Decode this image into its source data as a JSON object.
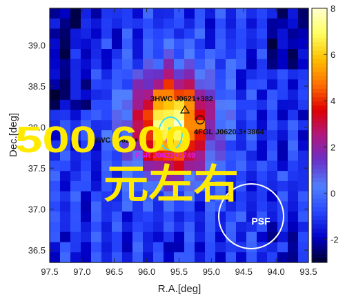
{
  "chart_data": {
    "type": "heatmap",
    "xlabel": "R.A.[deg]",
    "ylabel": "Dec.[deg]",
    "x_ticks": [
      "97.5",
      "97.0",
      "96.5",
      "96.0",
      "95.5",
      "95.0",
      "94.5",
      "94.0",
      "93.5"
    ],
    "y_ticks": [
      "36.5",
      "37.0",
      "37.5",
      "38.0",
      "38.5",
      "39.0"
    ],
    "xlim": [
      97.5,
      93.5
    ],
    "ylim": [
      36.35,
      39.45
    ],
    "colorbar": {
      "ticks": [
        "8",
        "6",
        "4",
        "2",
        "0",
        "-2"
      ],
      "range": [
        -3,
        8
      ],
      "colors": [
        "#000030",
        "#0000c8",
        "#2848ff",
        "#5080ff",
        "#6a30c8",
        "#b01880",
        "#e00000",
        "#ff7000",
        "#ffc000",
        "#ffff60",
        "#ffffd0"
      ]
    },
    "peak": {
      "ra": 95.6,
      "dec": 38.05,
      "value": 8
    },
    "annotations": [
      {
        "text": "3HWC J0621+382",
        "ra": 95.45,
        "dec": 38.2,
        "marker": "triangle",
        "color": "#111111"
      },
      {
        "text": "4FGL J0620.3+3804",
        "ra": 95.1,
        "dec": 38.07,
        "marker": "circle",
        "color": "#111111"
      },
      {
        "text": "2HWC J0622+37",
        "ra": 95.62,
        "dec": 37.85,
        "marker": "",
        "color": "#111111"
      },
      {
        "text": "PSR J0622+3749",
        "ra": 95.62,
        "dec": 37.84,
        "marker": "circle-cross",
        "color": "#e020e0"
      }
    ],
    "psf_label": "PSF"
  },
  "overlay": {
    "numbers": "500 600",
    "chinese": "元左右"
  }
}
